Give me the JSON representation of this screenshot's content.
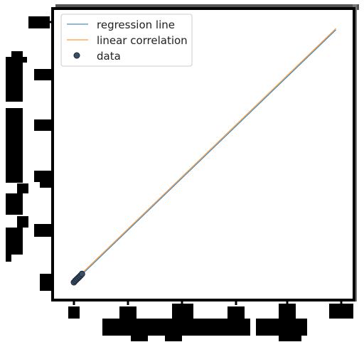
{
  "chart_data": {
    "type": "scatter",
    "title": "",
    "xlabel": "",
    "ylabel": "",
    "xlim": [
      0.0,
      1.0
    ],
    "ylim": [
      0.0,
      1.0
    ],
    "grid": false,
    "legend_placement": "top-left",
    "tick_labels_redacted": true,
    "axis_labels_redacted": true,
    "series": [
      {
        "name": "regression line",
        "kind": "line",
        "color": "#1f77b4",
        "x": [
          0.02,
          0.98
        ],
        "y": [
          0.02,
          0.97
        ]
      },
      {
        "name": "linear correlation",
        "kind": "line",
        "color": "#ff7f0e",
        "x": [
          0.02,
          0.98
        ],
        "y": [
          0.025,
          0.975
        ]
      },
      {
        "name": "data",
        "kind": "scatter",
        "color": "#3a4f66",
        "x": [
          0.0,
          0.005,
          0.01,
          0.015,
          0.02,
          0.025,
          0.03
        ],
        "y": [
          0.0,
          0.006,
          0.011,
          0.016,
          0.021,
          0.026,
          0.032
        ]
      }
    ]
  }
}
